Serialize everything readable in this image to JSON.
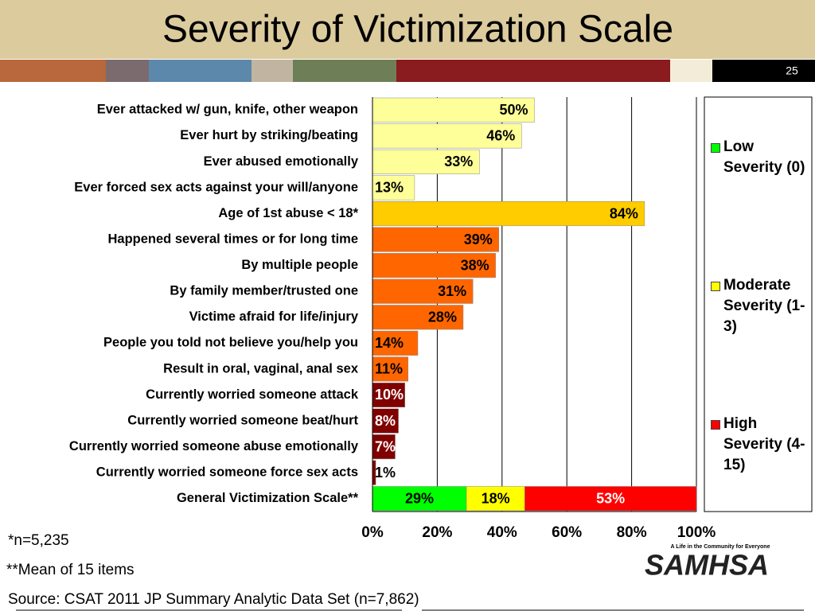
{
  "slide": {
    "title": "Severity of Victimization Scale",
    "page_number": "25",
    "notes": [
      "*n=5,235",
      "**Mean of 15 items"
    ],
    "source": "Source: CSAT 2011 JP Summary Analytic Data Set (n=7,862)",
    "logo_tagline": "A Life in the Community for Everyone",
    "logo": "SAMHSA"
  },
  "chart_data": {
    "type": "bar",
    "orientation": "horizontal",
    "categories": [
      "Ever attacked w/ gun, knife, other weapon",
      "Ever hurt by striking/beating",
      "Ever abused emotionally",
      "Ever forced sex acts against your will/anyone",
      "Age of 1st abuse < 18*",
      "Happened several times or for long time",
      "By multiple people",
      "By family member/trusted one",
      "Victime afraid for life/injury",
      "People you told not believe you/help you",
      "Result in oral, vaginal, anal sex",
      "Currently worried someone attack",
      "Currently worried someone beat/hurt",
      "Currently worried someone abuse emotionally",
      "Currently worried someone force sex acts",
      "General Victimization Scale**"
    ],
    "values": [
      50,
      46,
      33,
      13,
      84,
      39,
      38,
      31,
      28,
      14,
      11,
      10,
      8,
      7,
      1,
      null
    ],
    "value_labels": [
      "50%",
      "46%",
      "33%",
      "13%",
      "84%",
      "39%",
      "38%",
      "31%",
      "28%",
      "14%",
      "11%",
      "10%",
      "8%",
      "7%",
      "1%",
      null
    ],
    "colors": [
      "#ffff99",
      "#ffff99",
      "#ffff99",
      "#ffff99",
      "#ffcc00",
      "#ff6600",
      "#ff6600",
      "#ff6600",
      "#ff6600",
      "#ff6600",
      "#ff6600",
      "#800000",
      "#800000",
      "#800000",
      "#800000",
      null
    ],
    "series": [
      {
        "name": "Low Severity (0)",
        "color": "#00ff00",
        "values": [
          null,
          null,
          null,
          null,
          null,
          null,
          null,
          null,
          null,
          null,
          null,
          null,
          null,
          null,
          null,
          29
        ],
        "value_labels": [
          null,
          null,
          null,
          null,
          null,
          null,
          null,
          null,
          null,
          null,
          null,
          null,
          null,
          null,
          null,
          "29%"
        ]
      },
      {
        "name": "Moderate Severity (1-3)",
        "color": "#ffff00",
        "values": [
          null,
          null,
          null,
          null,
          null,
          null,
          null,
          null,
          null,
          null,
          null,
          null,
          null,
          null,
          null,
          18
        ],
        "value_labels": [
          null,
          null,
          null,
          null,
          null,
          null,
          null,
          null,
          null,
          null,
          null,
          null,
          null,
          null,
          null,
          "18%"
        ]
      },
      {
        "name": "High Severity (4-15)",
        "color": "#ff0000",
        "values": [
          null,
          null,
          null,
          null,
          null,
          null,
          null,
          null,
          null,
          null,
          null,
          null,
          null,
          null,
          null,
          53
        ],
        "value_labels": [
          null,
          null,
          null,
          null,
          null,
          null,
          null,
          null,
          null,
          null,
          null,
          null,
          null,
          null,
          null,
          "53%"
        ]
      }
    ],
    "xlim": [
      0,
      100
    ],
    "xticks": [
      {
        "value": 0,
        "label": "0%"
      },
      {
        "value": 20,
        "label": "20%"
      },
      {
        "value": 40,
        "label": "40%"
      },
      {
        "value": 60,
        "label": "60%"
      },
      {
        "value": 80,
        "label": "80%"
      },
      {
        "value": 100,
        "label": "100%"
      }
    ],
    "grid": true,
    "legend": "right"
  }
}
